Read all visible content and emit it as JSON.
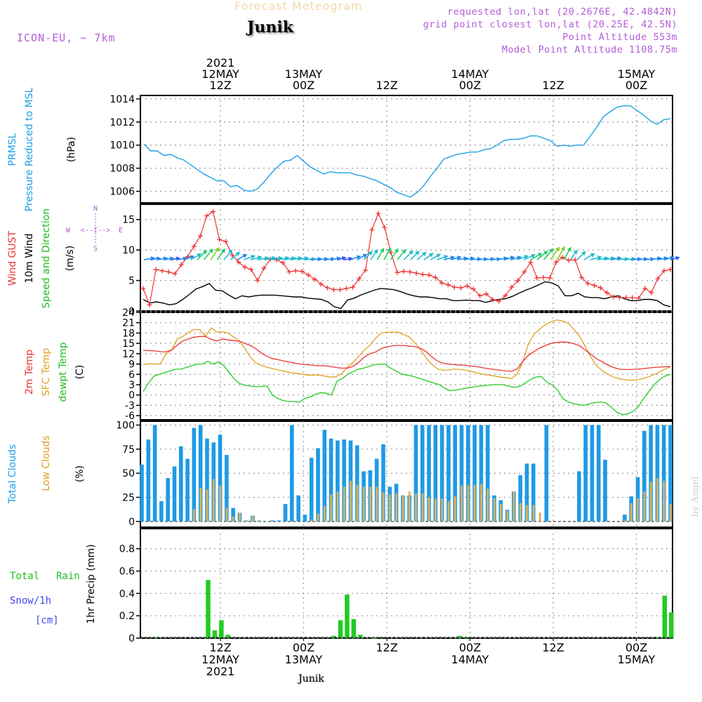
{
  "header": {
    "title": "Forecast Meteogram",
    "station": "Junik",
    "model": "ICON-EU, ~ 7km",
    "requested": "requested lon,lat (20.2676E, 42.4842N)",
    "gridpoint": "grid point closest lon,lat (20.25E, 42.5N)",
    "altitude": "Point Altitude 553m",
    "model_altitude": "Model Point Altitude 1108.75m",
    "footer_station": "Junik",
    "credit": "by Angel"
  },
  "colors": {
    "pressure": "#1ea0e6",
    "gust": "#ee3333",
    "wind": "#000000",
    "temp": "#ee3333",
    "sfc": "#e0a020",
    "dewpt": "#22cc22",
    "total_clouds": "#1e9ae6",
    "low_clouds": "#d8b060",
    "rain": "#22cc22",
    "snow": "#4444ee",
    "purple": "#b35cd6",
    "grid": "#999999"
  },
  "time_axis": {
    "top_labels": [
      {
        "h": 12,
        "lines": [
          "2021",
          "12MAY",
          "12Z"
        ]
      },
      {
        "h": 24,
        "lines": [
          "13MAY",
          "00Z"
        ]
      },
      {
        "h": 36,
        "lines": [
          "12Z"
        ]
      },
      {
        "h": 48,
        "lines": [
          "14MAY",
          "00Z"
        ]
      },
      {
        "h": 60,
        "lines": [
          "12Z"
        ]
      },
      {
        "h": 72,
        "lines": [
          "15MAY",
          "00Z"
        ]
      }
    ],
    "bottom_labels": [
      {
        "h": 12,
        "lines": [
          "12Z",
          "12MAY",
          "2021"
        ]
      },
      {
        "h": 24,
        "lines": [
          "00Z",
          "13MAY"
        ]
      },
      {
        "h": 36,
        "lines": [
          "12Z"
        ]
      },
      {
        "h": 48,
        "lines": [
          "00Z",
          "14MAY"
        ]
      },
      {
        "h": 60,
        "lines": [
          "12Z"
        ]
      },
      {
        "h": 72,
        "lines": [
          "00Z",
          "15MAY"
        ]
      }
    ]
  },
  "compass": {
    "n": "N",
    "s": "S",
    "w": "W",
    "e": "E",
    "arrow": "<--I-->"
  },
  "chart_data": [
    {
      "id": "pressure",
      "type": "line",
      "title": "PRMSL Pressure Reduced to MSL",
      "ylabel_lines": [
        "PRMSL",
        "Pressure Reduced to MSL"
      ],
      "unit": "(hPa)",
      "ylim": [
        1005,
        1014.3
      ],
      "ticks": [
        1006,
        1008,
        1010,
        1012,
        1014
      ],
      "x_hours_start": 0,
      "values": [
        1010.1,
        1009.5,
        1009.5,
        1009.1,
        1009.2,
        1008.9,
        1008.7,
        1008.3,
        1007.9,
        1007.5,
        1007.2,
        1006.9,
        1006.9,
        1006.4,
        1006.5,
        1006.1,
        1006.0,
        1006.2,
        1006.8,
        1007.5,
        1008.1,
        1008.6,
        1008.7,
        1009.1,
        1008.6,
        1008.1,
        1007.8,
        1007.5,
        1007.7,
        1007.6,
        1007.6,
        1007.6,
        1007.4,
        1007.3,
        1007.1,
        1006.9,
        1006.6,
        1006.3,
        1005.9,
        1005.7,
        1005.5,
        1005.9,
        1006.5,
        1007.3,
        1008.0,
        1008.8,
        1009.0,
        1009.2,
        1009.3,
        1009.4,
        1009.4,
        1009.6,
        1009.7,
        1010.0,
        1010.4,
        1010.5,
        1010.5,
        1010.6,
        1010.8,
        1010.8,
        1010.6,
        1010.4,
        1009.9,
        1010.0,
        1009.9,
        1010.0,
        1010.0,
        1010.8,
        1011.6,
        1012.5,
        1012.9,
        1013.3,
        1013.4,
        1013.4,
        1013.0,
        1012.6,
        1012.1,
        1011.8,
        1012.2,
        1012.3
      ]
    },
    {
      "id": "wind",
      "type": "line",
      "title": "Wind GUST / 10m Wind Speed and Direction",
      "ylabel_lines": [
        "Wind GUST",
        "10m Wind",
        "Speed and Direction"
      ],
      "unit": "(m/s)",
      "ylim": [
        0,
        17.5
      ],
      "ticks": [
        0,
        5,
        10,
        15
      ],
      "x_hours_start": 0,
      "gust": [
        3.7,
        1.0,
        6.8,
        6.6,
        6.4,
        6.1,
        7.6,
        8.9,
        10.6,
        12.3,
        15.6,
        16.3,
        11.7,
        11.4,
        9.2,
        8.0,
        7.2,
        6.8,
        5.0,
        7.0,
        8.5,
        8.4,
        7.9,
        6.4,
        6.6,
        6.5,
        5.9,
        5.2,
        4.4,
        3.8,
        3.5,
        3.5,
        3.7,
        3.9,
        5.3,
        6.7,
        13.3,
        16.0,
        13.7,
        9.6,
        6.3,
        6.5,
        6.4,
        6.2,
        6.0,
        5.9,
        5.5,
        4.6,
        4.3,
        3.9,
        3.8,
        4.1,
        3.6,
        2.5,
        2.8,
        1.9,
        1.6,
        2.5,
        3.9,
        5.0,
        6.4,
        8.0,
        5.4,
        5.5,
        5.4,
        8.0,
        8.8,
        8.3,
        8.4,
        5.5,
        4.5,
        4.2,
        3.8,
        3.0,
        2.3,
        2.2,
        2.2,
        2.2,
        2.1,
        3.7,
        3.0,
        5.3,
        6.6,
        6.8
      ],
      "wind": [
        1.9,
        1.3,
        1.5,
        1.3,
        1.0,
        1.2,
        1.9,
        2.7,
        3.6,
        4.0,
        4.5,
        3.4,
        3.3,
        2.6,
        2.0,
        2.5,
        2.3,
        2.5,
        2.6,
        2.6,
        2.6,
        2.5,
        2.4,
        2.3,
        2.3,
        2.1,
        2.0,
        1.9,
        1.5,
        0.7,
        0.4,
        1.8,
        2.1,
        2.6,
        3.0,
        3.4,
        3.7,
        3.6,
        3.5,
        3.2,
        2.8,
        2.5,
        2.3,
        2.3,
        2.2,
        2.0,
        2.0,
        1.7,
        1.7,
        1.8,
        1.7,
        1.7,
        1.4,
        1.7,
        1.9,
        2.0,
        2.4,
        2.9,
        3.4,
        3.8,
        4.3,
        4.8,
        4.6,
        4.1,
        2.5,
        2.5,
        2.9,
        2.3,
        2.2,
        2.2,
        2.0,
        2.3,
        2.5,
        2.0,
        1.7,
        1.7,
        1.9,
        1.9,
        1.7,
        1.0,
        0.7
      ],
      "direction_deg": [
        80,
        80,
        80,
        80,
        80,
        80,
        70,
        60,
        45,
        40,
        35,
        35,
        40,
        50,
        60,
        70,
        75,
        80,
        80,
        80,
        80,
        80,
        80,
        80,
        85,
        85,
        85,
        85,
        80,
        75,
        80,
        70,
        60,
        45,
        35,
        30,
        30,
        35,
        40,
        45,
        45,
        50,
        55,
        60,
        70,
        75,
        75,
        80,
        80,
        85,
        85,
        85,
        85,
        80,
        75,
        75,
        70,
        65,
        60,
        50,
        40,
        35,
        30,
        30,
        35,
        45,
        60,
        75,
        80,
        80,
        80,
        85,
        85,
        85,
        85,
        85,
        80,
        80,
        75,
        75
      ]
    },
    {
      "id": "temperature",
      "type": "line",
      "title": "2m Temp / SFC Temp / dewpt Temp",
      "ylabel_lines": [
        "2m Temp",
        "SFC Temp",
        "dewpt Temp"
      ],
      "unit": "(C)",
      "ylim": [
        -7.2,
        24
      ],
      "ticks": [
        -6,
        -3,
        0,
        3,
        6,
        9,
        12,
        15,
        18,
        21,
        24
      ],
      "x_hours_start": 0,
      "t2m": [
        13.0,
        12.9,
        12.8,
        12.6,
        12.5,
        13.1,
        14.5,
        15.7,
        16.3,
        16.8,
        17.0,
        17.0,
        16.2,
        15.7,
        16.3,
        16.0,
        15.8,
        15.6,
        15.0,
        14.3,
        13.3,
        12.0,
        11.1,
        10.5,
        10.2,
        9.8,
        9.5,
        9.2,
        8.9,
        8.8,
        8.6,
        8.5,
        8.5,
        8.3,
        8.0,
        7.8,
        7.8,
        8.3,
        9.5,
        11.0,
        12.0,
        12.5,
        13.5,
        14.0,
        14.3,
        14.4,
        14.4,
        14.2,
        14.0,
        13.5,
        12.5,
        11.0,
        9.8,
        9.2,
        9.0,
        8.8,
        8.7,
        8.6,
        8.4,
        8.2,
        7.9,
        7.6,
        7.4,
        7.2,
        7.0,
        6.9,
        7.6,
        9.8,
        11.6,
        12.7,
        13.7,
        14.4,
        15.0,
        15.3,
        15.4,
        15.3,
        14.9,
        14.3,
        13.0,
        11.8,
        10.5,
        9.6,
        8.7,
        8.0,
        7.5,
        7.4,
        7.4,
        7.5,
        7.6,
        7.8,
        8.0,
        8.1,
        8.2,
        8.3
      ],
      "sfc": [
        8.8,
        9.1,
        9.0,
        9.0,
        11.9,
        13.0,
        16.3,
        17.0,
        18.2,
        19.0,
        19.0,
        17.0,
        19.5,
        18.3,
        18.4,
        18.0,
        16.8,
        15.7,
        13.3,
        10.8,
        9.2,
        8.5,
        8.0,
        7.6,
        7.2,
        6.9,
        6.5,
        6.3,
        6.1,
        5.8,
        5.8,
        5.8,
        5.5,
        5.2,
        5.3,
        6.2,
        8.0,
        9.5,
        11.2,
        13.0,
        14.5,
        16.5,
        18.0,
        18.2,
        18.3,
        18.2,
        17.5,
        16.8,
        15.0,
        13.0,
        10.5,
        8.8,
        7.5,
        7.2,
        7.3,
        7.5,
        7.4,
        7.2,
        6.8,
        6.4,
        6.0,
        5.8,
        5.5,
        5.2,
        5.0,
        4.8,
        6.2,
        9.8,
        15.0,
        17.8,
        19.2,
        20.5,
        21.3,
        21.8,
        21.5,
        20.8,
        19.0,
        17.0,
        14.0,
        11.0,
        8.5,
        7.0,
        6.0,
        5.2,
        4.7,
        4.4,
        4.3,
        4.4,
        4.7,
        5.2,
        5.9,
        6.6,
        7.5,
        8.2
      ],
      "dewpt": [
        1.0,
        3.5,
        5.5,
        6.0,
        6.5,
        7.0,
        7.5,
        7.5,
        8.0,
        8.5,
        9.0,
        9.0,
        9.8,
        9.0,
        9.6,
        8.5,
        6.5,
        4.5,
        3.3,
        2.8,
        2.6,
        2.4,
        2.5,
        2.6,
        0.0,
        -1.0,
        -1.6,
        -1.9,
        -1.9,
        -2.1,
        -1.0,
        -0.6,
        0.2,
        0.7,
        0.5,
        0.0,
        4.0,
        4.8,
        6.0,
        6.8,
        7.5,
        7.8,
        8.3,
        8.8,
        9.0,
        9.0,
        7.8,
        7.0,
        6.1,
        5.8,
        5.5,
        5.0,
        4.5,
        4.0,
        3.5,
        3.0,
        2.0,
        1.3,
        1.4,
        1.7,
        2.0,
        2.2,
        2.5,
        2.7,
        2.8,
        3.0,
        3.0,
        3.0,
        2.5,
        2.2,
        2.5,
        3.5,
        4.5,
        5.2,
        5.4,
        3.8,
        3.0,
        1.5,
        -1.0,
        -2.0,
        -2.5,
        -2.8,
        -3.0,
        -2.5,
        -2.2,
        -2.0,
        -2.3,
        -3.5,
        -5.0,
        -5.7,
        -5.5,
        -4.8,
        -3.5,
        -1.0,
        1.0,
        3.0,
        4.5,
        5.5,
        6.0
      ],
      "x_hours_end": 76
    },
    {
      "id": "clouds",
      "type": "bar",
      "title": "Total Clouds / Low Clouds",
      "ylabel_lines": [
        "Total Clouds",
        "Low Clouds"
      ],
      "unit": "(%)",
      "ylim": [
        -6,
        104
      ],
      "ticks": [
        0,
        25,
        50,
        75,
        100
      ],
      "x_hours_start": 0,
      "total": [
        59,
        85,
        100,
        21,
        45,
        57,
        78,
        65,
        97,
        100,
        86,
        82,
        90,
        69,
        14,
        9,
        1,
        6,
        1,
        0,
        1,
        1,
        18,
        100,
        27,
        7,
        66,
        76,
        95,
        86,
        84,
        85,
        84,
        79,
        52,
        53,
        65,
        80,
        36,
        39,
        27,
        27,
        100,
        100,
        100,
        100,
        100,
        100,
        100,
        100,
        100,
        100,
        100,
        100,
        27,
        22,
        12,
        31,
        48,
        60,
        60,
        0,
        100,
        0,
        0,
        0,
        0,
        52,
        100,
        100,
        100,
        64,
        0,
        0,
        7,
        26,
        46,
        94,
        100,
        100,
        100,
        100
      ],
      "low": [
        0,
        0,
        0,
        0,
        0,
        0,
        0,
        0,
        13,
        35,
        33,
        44,
        37,
        14,
        5,
        9,
        1,
        6,
        1,
        0,
        0,
        0,
        0,
        0,
        0,
        0,
        2,
        8,
        16,
        28,
        31,
        36,
        42,
        38,
        36,
        36,
        36,
        30,
        28,
        29,
        27,
        31,
        29,
        29,
        25,
        24,
        24,
        21,
        26,
        37,
        38,
        38,
        39,
        34,
        24,
        18,
        11,
        31,
        19,
        17,
        17,
        9,
        0,
        0,
        0,
        0,
        0,
        0,
        0,
        0,
        0,
        0,
        0,
        0,
        1,
        19,
        24,
        31,
        41,
        45,
        42,
        18
      ]
    },
    {
      "id": "precip",
      "type": "bar",
      "title": "1hr Precip (mm)",
      "ylabel_lines": [
        "Total Rain",
        "Snow/1h",
        "[cm]"
      ],
      "unit": "1hr Precip (mm)",
      "ylim": [
        0,
        0.98
      ],
      "ticks": [
        0,
        0.2,
        0.4,
        0.6,
        0.8
      ],
      "x_hours_start": 0,
      "rain": [
        0,
        0,
        0.01,
        0,
        0,
        0,
        0,
        0,
        0,
        0,
        0.52,
        0.07,
        0.16,
        0.03,
        0,
        0,
        0,
        0,
        0,
        0,
        0,
        0,
        0,
        0,
        0,
        0,
        0,
        0,
        0,
        0.02,
        0.16,
        0.39,
        0.17,
        0.03,
        0,
        0.005,
        0,
        0,
        0,
        0,
        0,
        0,
        0,
        0,
        0,
        0,
        0,
        0,
        0.02,
        0.01,
        0,
        0,
        0,
        0,
        0,
        0,
        0,
        0,
        0,
        0,
        0,
        0,
        0,
        0,
        0,
        0,
        0,
        0,
        0,
        0,
        0,
        0,
        0,
        0,
        0,
        0,
        0,
        0,
        0.01,
        0.38,
        0.23
      ],
      "snow_line": 0
    }
  ]
}
